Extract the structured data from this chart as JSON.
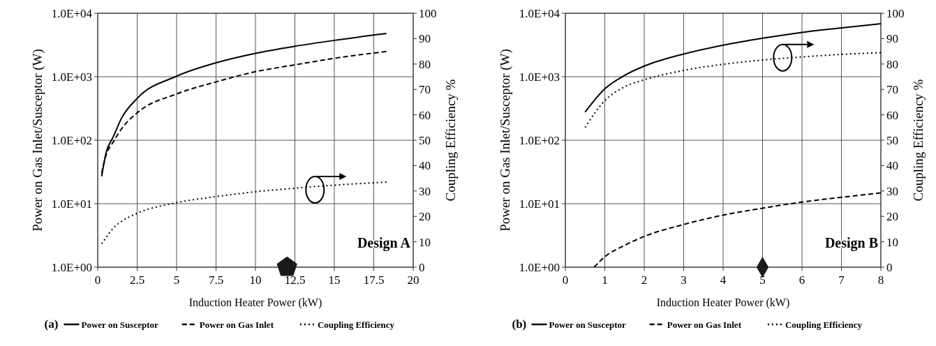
{
  "chart_data": [
    {
      "type": "line",
      "xlabel": "Induction Heater Power (kW)",
      "ylabel": "Power on Gas Inlet/Susceptor (W)",
      "y2label": "Coupling Efficiency %",
      "log": "y",
      "grid": true,
      "legend": "bottom",
      "xlim": [
        0,
        20
      ],
      "xticks": [
        0,
        2.5,
        5,
        7.5,
        10,
        12.5,
        15,
        17.5,
        20
      ],
      "ylim": [
        1,
        10000
      ],
      "yticks": [
        {
          "value": 1,
          "label": "1.0E+00"
        },
        {
          "value": 10,
          "label": "1.0E+01"
        },
        {
          "value": 100,
          "label": "1.0E+02"
        },
        {
          "value": 1000,
          "label": "1.0E+03"
        },
        {
          "value": 10000,
          "label": "1.0E+04"
        }
      ],
      "y2lim": [
        0,
        100
      ],
      "y2ticks": [
        0,
        10,
        20,
        30,
        40,
        50,
        60,
        70,
        80,
        90,
        100
      ],
      "annotations": [
        "Design A",
        "(a)"
      ],
      "series": [
        {
          "name": "Power on Susceptor",
          "color": "#000000",
          "line_style": "solid",
          "x": [
            0.25,
            0.5,
            1,
            1.5,
            2.5,
            5,
            7.5,
            10,
            12.5,
            15,
            18.3
          ],
          "values": [
            27,
            59,
            115,
            220,
            455,
            1020,
            1660,
            2340,
            3020,
            3740,
            4790
          ]
        },
        {
          "name": "Power on Gas Inlet",
          "color": "#000000",
          "line_style": "dashed",
          "x": [
            0.25,
            0.5,
            1,
            1.5,
            2.5,
            5,
            7.5,
            10,
            12.5,
            15,
            18.3
          ],
          "values": [
            30,
            55,
            95,
            150,
            270,
            535,
            830,
            1200,
            1540,
            1950,
            2500
          ]
        },
        {
          "name": "Coupling Efficiency",
          "color": "#000000",
          "line_style": "dotted",
          "axis": "y2",
          "x": [
            0.25,
            0.5,
            1,
            1.5,
            2.5,
            5,
            7.5,
            10,
            12.5,
            15,
            18.3
          ],
          "values": [
            9.2,
            11.4,
            15.5,
            18,
            21.2,
            25.4,
            27.8,
            29.7,
            31.1,
            32.3,
            33.5
          ]
        }
      ]
    },
    {
      "type": "line",
      "xlabel": "Induction Heater Power (kW)",
      "ylabel": "Power on Gas Inlet/Susceptor (W)",
      "y2label": "Coupling Efficiency %",
      "log": "y",
      "grid": true,
      "legend": "bottom",
      "xlim": [
        0,
        8
      ],
      "xticks": [
        0,
        1,
        2,
        3,
        4,
        5,
        6,
        7,
        8
      ],
      "ylim": [
        1,
        10000
      ],
      "yticks": [
        {
          "value": 1,
          "label": "1.0E+00"
        },
        {
          "value": 10,
          "label": "1.0E+01"
        },
        {
          "value": 100,
          "label": "1.0E+02"
        },
        {
          "value": 1000,
          "label": "1.0E+03"
        },
        {
          "value": 10000,
          "label": "1.0E+04"
        }
      ],
      "y2lim": [
        0,
        100
      ],
      "y2ticks": [
        0,
        10,
        20,
        30,
        40,
        50,
        60,
        70,
        80,
        90,
        100
      ],
      "annotations": [
        "Design B",
        "(b)"
      ],
      "series": [
        {
          "name": "Power on Susceptor",
          "color": "#000000",
          "line_style": "solid",
          "x": [
            0.5,
            1,
            1.5,
            2,
            3,
            4,
            5,
            6,
            7,
            8
          ],
          "values": [
            277,
            645,
            1050,
            1470,
            2280,
            3140,
            4040,
            5000,
            5870,
            6850
          ]
        },
        {
          "name": "Power on Gas Inlet",
          "color": "#000000",
          "line_style": "dashed",
          "x": [
            0.73,
            1,
            1.5,
            2,
            3,
            4,
            5,
            6,
            7,
            8
          ],
          "values": [
            1,
            1.46,
            2.2,
            3.05,
            4.7,
            6.6,
            8.5,
            10.6,
            12.6,
            14.8
          ]
        },
        {
          "name": "Coupling Efficiency",
          "color": "#000000",
          "line_style": "dotted",
          "axis": "y2",
          "x": [
            0.5,
            1,
            1.5,
            2,
            3,
            4,
            5,
            6,
            7,
            8
          ],
          "values": [
            55,
            65.6,
            71,
            73.8,
            77.5,
            79.9,
            81.6,
            82.8,
            83.8,
            84.5
          ]
        },
        {
          "type": "scatter",
          "color": "#1a1a1a",
          "marker": "diamond",
          "x": [
            5
          ],
          "values": [
            1
          ]
        }
      ]
    }
  ]
}
